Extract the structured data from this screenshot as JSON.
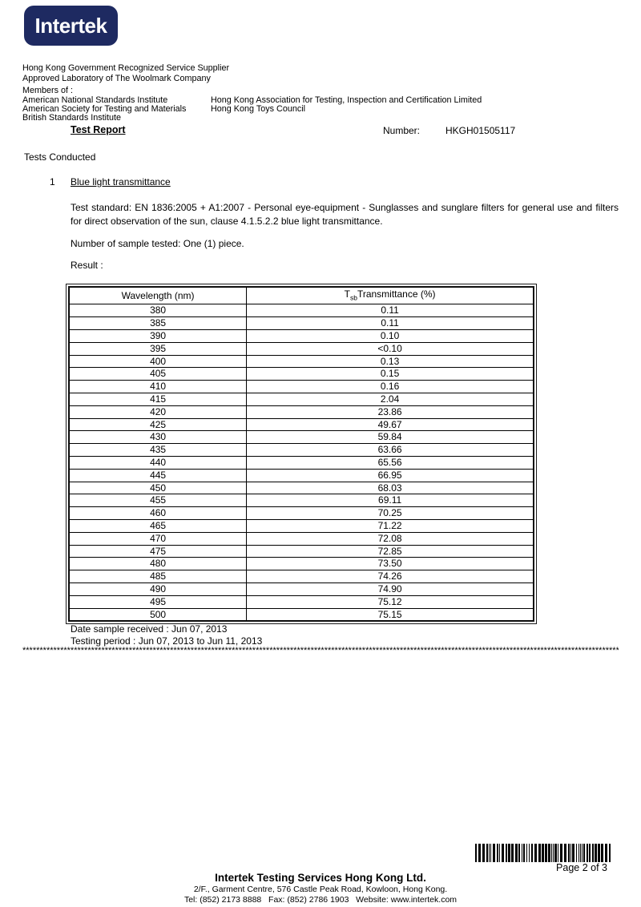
{
  "logo": {
    "text": "Intertek",
    "bg_color": "#1e2a61",
    "text_color": "#ffffff"
  },
  "header": {
    "accreditations": [
      "Hong Kong Government Recognized Service Supplier",
      "Approved Laboratory of The Woolmark Company"
    ],
    "members_label": "Members of :",
    "members_left": [
      "American National Standards Institute",
      "American Society for Testing and Materials",
      "British Standards Institute"
    ],
    "members_right": [
      "Hong Kong Association for Testing, Inspection and Certification Limited",
      "Hong Kong Toys Council"
    ]
  },
  "report": {
    "title": "Test Report",
    "number_label": "Number:",
    "number_value": "HKGH01505117",
    "section_label": "Tests Conducted",
    "item_number": "1",
    "item_title": "Blue light transmittance",
    "test_standard": "Test standard: EN 1836:2005 + A1:2007 - Personal eye-equipment - Sunglasses and sunglare filters for general use and filters for direct observation of the sun, clause 4.1.5.2.2 blue light transmittance.",
    "sample_tested": "Number of sample tested: One (1) piece.",
    "result_label": "Result :",
    "date_received": "Date sample received : Jun 07, 2013",
    "testing_period": "Testing period : Jun 07, 2013 to Jun 11, 2013",
    "separator": "************************************************************************************************************************************************************************************"
  },
  "table": {
    "col1_header": "Wavelength (nm)",
    "col2_header_prefix": "T",
    "col2_header_sub": "sb",
    "col2_header_suffix": "Transmittance (%)",
    "rows": [
      [
        "380",
        "0.11"
      ],
      [
        "385",
        "0.11"
      ],
      [
        "390",
        "0.10"
      ],
      [
        "395",
        "<0.10"
      ],
      [
        "400",
        "0.13"
      ],
      [
        "405",
        "0.15"
      ],
      [
        "410",
        "0.16"
      ],
      [
        "415",
        "2.04"
      ],
      [
        "420",
        "23.86"
      ],
      [
        "425",
        "49.67"
      ],
      [
        "430",
        "59.84"
      ],
      [
        "435",
        "63.66"
      ],
      [
        "440",
        "65.56"
      ],
      [
        "445",
        "66.95"
      ],
      [
        "450",
        "68.03"
      ],
      [
        "455",
        "69.11"
      ],
      [
        "460",
        "70.25"
      ],
      [
        "465",
        "71.22"
      ],
      [
        "470",
        "72.08"
      ],
      [
        "475",
        "72.85"
      ],
      [
        "480",
        "73.50"
      ],
      [
        "485",
        "74.26"
      ],
      [
        "490",
        "74.90"
      ],
      [
        "495",
        "75.12"
      ],
      [
        "500",
        "75.15"
      ]
    ]
  },
  "footer": {
    "page_label": "Page 2 of 3",
    "company": "Intertek Testing Services Hong Kong Ltd.",
    "address": "2/F., Garment Centre, 576 Castle Peak Road, Kowloon, Hong Kong.",
    "contact": "Tel: (852) 2173 8888   Fax: (852) 2786 1903   Website: www.intertek.com"
  }
}
